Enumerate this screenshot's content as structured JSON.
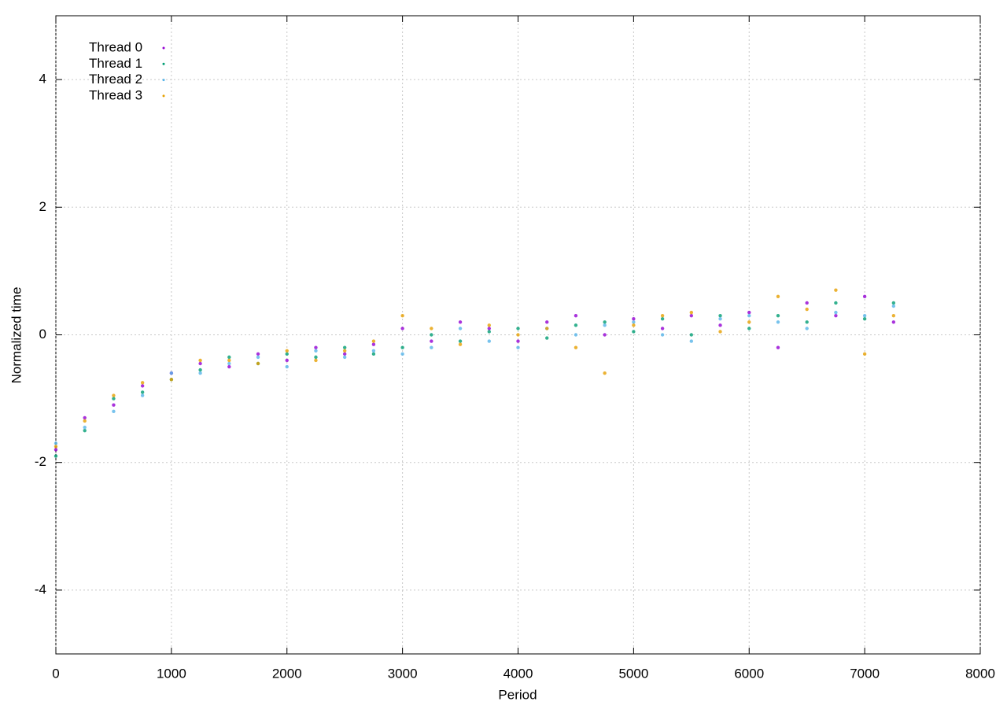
{
  "chart_data": {
    "type": "scatter",
    "x_label": "Period",
    "y_label": "Normalized time",
    "xlim": [
      0,
      8000
    ],
    "ylim": [
      -5,
      5
    ],
    "xticks": [
      0,
      1000,
      2000,
      3000,
      4000,
      5000,
      6000,
      7000,
      8000
    ],
    "yticks": [
      -4,
      -2,
      0,
      2,
      4
    ],
    "grid": true,
    "legend": "top-left",
    "x": [
      0,
      250,
      500,
      750,
      1000,
      1250,
      1500,
      1750,
      2000,
      2250,
      2500,
      2750,
      3000,
      3250,
      3500,
      3750,
      4000,
      4250,
      4500,
      4750,
      5000,
      5250,
      5500,
      5750,
      6000,
      6250,
      6500,
      6750,
      7000,
      7250
    ],
    "series": [
      {
        "name": "Thread 0",
        "color": "#9400d3",
        "values": [
          -1.8,
          -1.3,
          -1.1,
          -0.8,
          -0.6,
          -0.45,
          -0.5,
          -0.3,
          -0.4,
          -0.2,
          -0.3,
          -0.15,
          0.1,
          -0.1,
          0.2,
          0.1,
          -0.1,
          0.2,
          0.3,
          0.0,
          0.25,
          0.1,
          0.3,
          0.15,
          0.35,
          -0.2,
          0.5,
          0.3,
          0.6,
          0.2
        ]
      },
      {
        "name": "Thread 1",
        "color": "#009e73",
        "values": [
          -1.9,
          -1.5,
          -1.0,
          -0.9,
          -0.7,
          -0.55,
          -0.35,
          -0.45,
          -0.3,
          -0.35,
          -0.2,
          -0.3,
          -0.2,
          0.0,
          -0.1,
          0.05,
          0.1,
          -0.05,
          0.15,
          0.2,
          0.05,
          0.25,
          0.0,
          0.3,
          0.1,
          0.3,
          0.2,
          0.5,
          0.25,
          0.5
        ]
      },
      {
        "name": "Thread 2",
        "color": "#56b4e9",
        "values": [
          -1.7,
          -1.45,
          -1.2,
          -0.95,
          -0.6,
          -0.6,
          -0.45,
          -0.35,
          -0.5,
          -0.25,
          -0.35,
          -0.25,
          -0.3,
          -0.2,
          0.1,
          -0.1,
          -0.2,
          0.1,
          0.0,
          0.15,
          0.2,
          0.0,
          -0.1,
          0.25,
          0.3,
          0.2,
          0.1,
          0.35,
          0.3,
          0.45
        ]
      },
      {
        "name": "Thread 3",
        "color": "#e69f00",
        "values": [
          -1.75,
          -1.35,
          -0.95,
          -0.75,
          -0.7,
          -0.4,
          -0.4,
          -0.45,
          -0.25,
          -0.4,
          -0.25,
          -0.1,
          0.3,
          0.1,
          -0.15,
          0.15,
          0.0,
          0.1,
          -0.2,
          -0.6,
          0.15,
          0.3,
          0.35,
          0.05,
          0.2,
          0.6,
          0.4,
          0.7,
          -0.3,
          0.3
        ]
      }
    ]
  }
}
